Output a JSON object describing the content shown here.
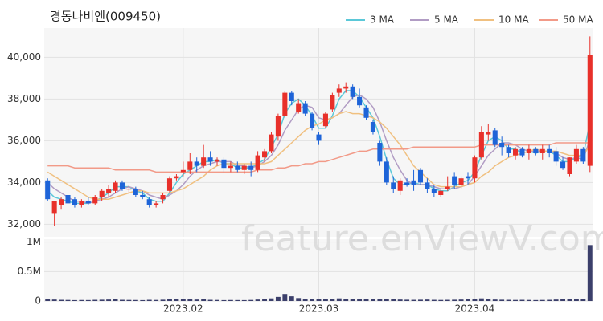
{
  "chart_data": {
    "type": "candlestick",
    "title": "경동나비엔(009450)",
    "watermark": "feature.enViewV.com",
    "grid": true,
    "up_color": "#e8302a",
    "down_color": "#1e64d8",
    "categories": [
      null,
      null,
      null,
      null,
      null,
      null,
      null,
      null,
      null,
      null,
      null,
      null,
      null,
      null,
      null,
      null,
      null,
      null,
      null,
      null,
      "2023.02",
      null,
      null,
      null,
      null,
      null,
      null,
      null,
      null,
      null,
      null,
      null,
      null,
      null,
      null,
      null,
      null,
      null,
      null,
      null,
      "2023.03",
      null,
      null,
      null,
      null,
      null,
      null,
      null,
      null,
      null,
      null,
      null,
      null,
      null,
      null,
      null,
      null,
      null,
      null,
      null,
      null,
      null,
      null,
      "2023.04",
      null,
      null,
      null,
      null,
      null,
      null,
      null,
      null,
      null,
      null,
      null,
      null,
      null,
      null,
      null,
      null,
      null
    ],
    "open": [
      34100,
      32500,
      32900,
      33400,
      33200,
      32900,
      33100,
      33000,
      33300,
      33500,
      33600,
      34000,
      33700,
      33700,
      33400,
      33200,
      32900,
      33200,
      33600,
      34200,
      34500,
      34600,
      35000,
      34800,
      35200,
      35000,
      35100,
      34700,
      34800,
      34600,
      34800,
      34600,
      35200,
      35500,
      36200,
      37200,
      38300,
      37400,
      37800,
      37300,
      36300,
      36700,
      37500,
      38300,
      38500,
      38600,
      38100,
      37600,
      36900,
      35900,
      35000,
      34000,
      33600,
      34000,
      34100,
      34600,
      34000,
      33700,
      33400,
      33700,
      34300,
      33900,
      34300,
      34200,
      35200,
      36300,
      36500,
      35900,
      35700,
      35300,
      35600,
      35400,
      35600,
      35400,
      35600,
      35500,
      35000,
      34400,
      35000,
      35600,
      34800
    ],
    "high": [
      34200,
      33100,
      33300,
      33500,
      33300,
      33200,
      33300,
      33400,
      33700,
      33900,
      34100,
      34100,
      33900,
      33800,
      33600,
      33300,
      33100,
      33500,
      34300,
      34400,
      35000,
      35400,
      35200,
      35800,
      35500,
      35200,
      35200,
      35000,
      35000,
      34900,
      35000,
      35500,
      35600,
      36400,
      37300,
      38400,
      38400,
      38000,
      37900,
      37400,
      36400,
      37400,
      38300,
      38700,
      38800,
      38700,
      38500,
      37700,
      37000,
      36000,
      35200,
      34300,
      34200,
      34200,
      34600,
      34700,
      34200,
      33900,
      33700,
      34300,
      34500,
      34300,
      34500,
      35300,
      36700,
      36800,
      36600,
      36200,
      35800,
      35700,
      35700,
      35800,
      35700,
      35800,
      35800,
      35700,
      35200,
      35200,
      35800,
      35700,
      41000
    ],
    "low": [
      33100,
      31900,
      32700,
      32900,
      32800,
      32800,
      32900,
      32900,
      33100,
      33300,
      33500,
      33600,
      33500,
      33300,
      33200,
      32800,
      32800,
      33000,
      33500,
      34100,
      34300,
      34400,
      34500,
      34700,
      34800,
      34800,
      34500,
      34500,
      34500,
      34400,
      34300,
      34500,
      35000,
      35400,
      36000,
      37100,
      37700,
      37300,
      37200,
      36500,
      35800,
      36600,
      37400,
      38100,
      38300,
      38000,
      37600,
      37000,
      36300,
      34800,
      33900,
      33500,
      33400,
      33800,
      33600,
      33900,
      33500,
      33300,
      33300,
      33600,
      33700,
      33700,
      33900,
      34000,
      35100,
      36000,
      35700,
      35300,
      35200,
      35100,
      35200,
      35100,
      35300,
      35100,
      35200,
      34800,
      34600,
      34300,
      34900,
      34900,
      34500
    ],
    "close": [
      33200,
      33100,
      33200,
      33000,
      32900,
      33100,
      33000,
      33300,
      33600,
      33700,
      34000,
      33700,
      33700,
      33400,
      33300,
      32900,
      33000,
      33400,
      34200,
      34300,
      34600,
      35000,
      34800,
      35200,
      35000,
      35100,
      34700,
      34800,
      34600,
      34800,
      34600,
      35300,
      35500,
      36300,
      37200,
      38300,
      37900,
      37800,
      37300,
      36600,
      36000,
      37300,
      38200,
      38500,
      38600,
      38100,
      37700,
      37100,
      36400,
      35000,
      34000,
      33700,
      34100,
      33900,
      33900,
      34000,
      33700,
      33500,
      33600,
      33800,
      33900,
      34200,
      34200,
      35200,
      36400,
      36400,
      35800,
      35700,
      35400,
      35600,
      35300,
      35600,
      35400,
      35600,
      35400,
      35000,
      34700,
      35200,
      35600,
      35000,
      40100
    ],
    "ylim": [
      31400,
      41400
    ],
    "yticks": [
      {
        "value": 32000,
        "label": "32,000"
      },
      {
        "value": 34000,
        "label": "34,000"
      },
      {
        "value": 36000,
        "label": "36,000"
      },
      {
        "value": 38000,
        "label": "38,000"
      },
      {
        "value": 40000,
        "label": "40,000"
      }
    ],
    "series": [
      {
        "name": "3 MA",
        "color": "#5bc8d8",
        "values": [
          33600,
          33300,
          33200,
          33100,
          33000,
          33000,
          33000,
          33100,
          33300,
          33500,
          33800,
          33800,
          33800,
          33600,
          33500,
          33200,
          33100,
          33100,
          33500,
          34000,
          34400,
          34600,
          34800,
          35000,
          35000,
          35100,
          34900,
          34900,
          34700,
          34700,
          34700,
          34900,
          35100,
          35700,
          36300,
          37300,
          37800,
          38000,
          37700,
          37200,
          36600,
          36600,
          37200,
          38000,
          38400,
          38400,
          38100,
          37600,
          37100,
          36200,
          35100,
          34200,
          33900,
          33900,
          34000,
          33900,
          33900,
          33700,
          33600,
          33600,
          33800,
          34000,
          34100,
          34500,
          35300,
          36000,
          36200,
          36000,
          35600,
          35600,
          35400,
          35500,
          35400,
          35500,
          35500,
          35300,
          35000,
          35000,
          35200,
          35300,
          36900
        ]
      },
      {
        "name": "5 MA",
        "color": "#b19cc4",
        "values": [
          34000,
          33700,
          33500,
          33300,
          33100,
          33100,
          33000,
          33100,
          33200,
          33300,
          33500,
          33700,
          33800,
          33700,
          33600,
          33400,
          33300,
          33200,
          33400,
          33600,
          33900,
          34300,
          34600,
          34800,
          34900,
          35000,
          35000,
          35000,
          34800,
          34800,
          34700,
          34800,
          35000,
          35300,
          35800,
          36500,
          37000,
          37500,
          37700,
          37600,
          37100,
          37000,
          37100,
          37300,
          37700,
          38100,
          38200,
          38000,
          37600,
          36900,
          36000,
          35200,
          34600,
          34100,
          33900,
          33900,
          33900,
          33800,
          33700,
          33700,
          33700,
          33800,
          33900,
          34300,
          34800,
          35300,
          35600,
          35900,
          35900,
          35800,
          35600,
          35500,
          35500,
          35500,
          35500,
          35400,
          35200,
          35100,
          35200,
          35100,
          36100
        ]
      },
      {
        "name": "10 MA",
        "color": "#f0c080",
        "values": [
          34500,
          34300,
          34100,
          33900,
          33700,
          33500,
          33300,
          33200,
          33200,
          33200,
          33300,
          33400,
          33500,
          33600,
          33600,
          33500,
          33500,
          33500,
          33500,
          33600,
          33700,
          33900,
          34100,
          34300,
          34600,
          34800,
          34900,
          34900,
          34900,
          34900,
          34900,
          34900,
          34900,
          35000,
          35300,
          35600,
          35900,
          36200,
          36500,
          36700,
          36800,
          37000,
          37100,
          37300,
          37400,
          37300,
          37300,
          37200,
          37100,
          36900,
          36600,
          36200,
          35800,
          35300,
          34800,
          34500,
          34200,
          33900,
          33800,
          33800,
          33800,
          33800,
          33900,
          34000,
          34300,
          34500,
          34800,
          35000,
          35200,
          35300,
          35400,
          35500,
          35600,
          35500,
          35500,
          35500,
          35400,
          35300,
          35300,
          35300,
          35800
        ]
      },
      {
        "name": "50 MA",
        "color": "#f29a88",
        "values": [
          34800,
          34800,
          34800,
          34800,
          34700,
          34700,
          34700,
          34700,
          34700,
          34700,
          34600,
          34600,
          34600,
          34600,
          34600,
          34600,
          34500,
          34500,
          34500,
          34500,
          34500,
          34500,
          34500,
          34500,
          34500,
          34500,
          34500,
          34500,
          34500,
          34500,
          34500,
          34600,
          34600,
          34600,
          34700,
          34700,
          34800,
          34800,
          34900,
          34900,
          35000,
          35000,
          35100,
          35200,
          35300,
          35400,
          35500,
          35500,
          35600,
          35600,
          35600,
          35600,
          35600,
          35600,
          35700,
          35700,
          35700,
          35700,
          35700,
          35700,
          35700,
          35700,
          35700,
          35700,
          35800,
          35800,
          35800,
          35800,
          35800,
          35800,
          35800,
          35800,
          35800,
          35800,
          35800,
          35900,
          35900,
          35900,
          35900,
          35900,
          35900
        ]
      }
    ],
    "volume": {
      "color": "#3b3f6b",
      "values": [
        30000,
        25000,
        20000,
        18000,
        15000,
        17000,
        16000,
        20000,
        22000,
        25000,
        30000,
        20000,
        18000,
        17000,
        15000,
        20000,
        18000,
        22000,
        35000,
        30000,
        40000,
        35000,
        25000,
        30000,
        20000,
        18000,
        15000,
        17000,
        16000,
        15000,
        18000,
        25000,
        30000,
        45000,
        70000,
        120000,
        80000,
        50000,
        40000,
        35000,
        30000,
        35000,
        40000,
        45000,
        35000,
        30000,
        28000,
        30000,
        35000,
        40000,
        35000,
        30000,
        25000,
        22000,
        20000,
        22000,
        25000,
        20000,
        18000,
        20000,
        22000,
        25000,
        30000,
        40000,
        45000,
        30000,
        25000,
        22000,
        20000,
        18000,
        20000,
        18000,
        16000,
        18000,
        20000,
        25000,
        30000,
        35000,
        30000,
        40000,
        950000
      ],
      "ylim": [
        0,
        1050000
      ],
      "yticks": [
        0,
        {
          "value": 500000,
          "label": "0.5M"
        },
        {
          "value": 1000000,
          "label": "1M"
        }
      ]
    }
  }
}
